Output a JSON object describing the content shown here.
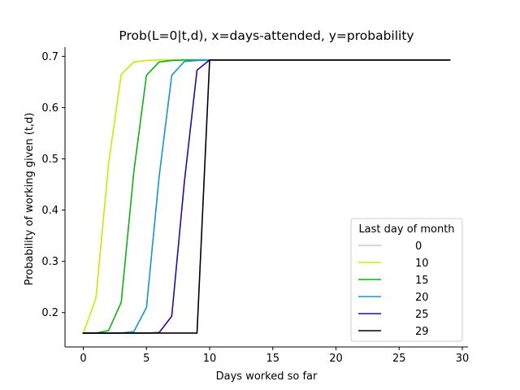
{
  "chart_data": {
    "type": "line",
    "title": "Prob(L=0|t,d), x=days-attended, y=probability",
    "xlabel": "Days worked so far",
    "ylabel": "Probability of working given (t,d)",
    "xlim": [
      -1.45,
      30.45
    ],
    "ylim": [
      0.133,
      0.718
    ],
    "xticks": [
      0,
      5,
      10,
      15,
      20,
      25,
      30
    ],
    "yticks": [
      0.2,
      0.3,
      0.4,
      0.5,
      0.6,
      0.7
    ],
    "xtick_labels": [
      "0",
      "5",
      "10",
      "15",
      "20",
      "25",
      "30"
    ],
    "ytick_labels": [
      "0.2",
      "0.3",
      "0.4",
      "0.5",
      "0.6",
      "0.7"
    ],
    "grid": false,
    "legend": {
      "title": "Last day of month",
      "placement": "bottom-right"
    },
    "series": [
      {
        "name": "0",
        "color": "#c8c8c8",
        "x": [
          0
        ],
        "y": [
          0.693
        ]
      },
      {
        "name": "10",
        "color": "#c0f000",
        "x": [
          0,
          1,
          2,
          3,
          4,
          5,
          6,
          7,
          8,
          9,
          10,
          11,
          12,
          13,
          14,
          15,
          16,
          17,
          18,
          19,
          20,
          21,
          22,
          23,
          24,
          25,
          26,
          27,
          28,
          29
        ],
        "y": [
          0.16,
          0.228,
          0.49,
          0.665,
          0.689,
          0.692,
          0.693,
          0.693,
          0.693,
          0.693,
          0.693,
          0.693,
          0.693,
          0.693,
          0.693,
          0.693,
          0.693,
          0.693,
          0.693,
          0.693,
          0.693,
          0.693,
          0.693,
          0.693,
          0.693,
          0.693,
          0.693,
          0.693,
          0.693,
          0.693
        ]
      },
      {
        "name": "15",
        "color": "#10b010",
        "x": [
          0,
          1,
          2,
          3,
          4,
          5,
          6,
          7,
          8,
          9,
          10,
          11,
          12,
          13,
          14,
          15,
          16,
          17,
          18,
          19,
          20,
          21,
          22,
          23,
          24,
          25,
          26,
          27,
          28,
          29
        ],
        "y": [
          0.16,
          0.16,
          0.165,
          0.22,
          0.475,
          0.663,
          0.689,
          0.692,
          0.693,
          0.693,
          0.693,
          0.693,
          0.693,
          0.693,
          0.693,
          0.693,
          0.693,
          0.693,
          0.693,
          0.693,
          0.693,
          0.693,
          0.693,
          0.693,
          0.693,
          0.693,
          0.693,
          0.693,
          0.693,
          0.693
        ]
      },
      {
        "name": "20",
        "color": "#1098c8",
        "x": [
          0,
          1,
          2,
          3,
          4,
          5,
          6,
          7,
          8,
          9,
          10,
          11,
          12,
          13,
          14,
          15,
          16,
          17,
          18,
          19,
          20,
          21,
          22,
          23,
          24,
          25,
          26,
          27,
          28,
          29
        ],
        "y": [
          0.16,
          0.16,
          0.16,
          0.16,
          0.163,
          0.21,
          0.465,
          0.663,
          0.69,
          0.692,
          0.693,
          0.693,
          0.693,
          0.693,
          0.693,
          0.693,
          0.693,
          0.693,
          0.693,
          0.693,
          0.693,
          0.693,
          0.693,
          0.693,
          0.693,
          0.693,
          0.693,
          0.693,
          0.693,
          0.693
        ]
      },
      {
        "name": "25",
        "color": "#2a0a96",
        "x": [
          0,
          1,
          2,
          3,
          4,
          5,
          6,
          7,
          8,
          9,
          10,
          11,
          12,
          13,
          14,
          15,
          16,
          17,
          18,
          19,
          20,
          21,
          22,
          23,
          24,
          25,
          26,
          27,
          28,
          29
        ],
        "y": [
          0.16,
          0.16,
          0.16,
          0.16,
          0.16,
          0.16,
          0.161,
          0.193,
          0.455,
          0.673,
          0.693,
          0.693,
          0.693,
          0.693,
          0.693,
          0.693,
          0.693,
          0.693,
          0.693,
          0.693,
          0.693,
          0.693,
          0.693,
          0.693,
          0.693,
          0.693,
          0.693,
          0.693,
          0.693,
          0.693
        ]
      },
      {
        "name": "29",
        "color": "#000000",
        "x": [
          0,
          1,
          2,
          3,
          4,
          5,
          6,
          7,
          8,
          9,
          10,
          11,
          12,
          13,
          14,
          15,
          16,
          17,
          18,
          19,
          20,
          21,
          22,
          23,
          24,
          25,
          26,
          27,
          28,
          29
        ],
        "y": [
          0.16,
          0.16,
          0.16,
          0.16,
          0.16,
          0.16,
          0.16,
          0.16,
          0.16,
          0.16,
          0.693,
          0.693,
          0.693,
          0.693,
          0.693,
          0.693,
          0.693,
          0.693,
          0.693,
          0.693,
          0.693,
          0.693,
          0.693,
          0.693,
          0.693,
          0.693,
          0.693,
          0.693,
          0.693,
          0.693
        ]
      }
    ]
  }
}
